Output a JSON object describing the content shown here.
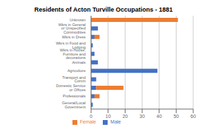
{
  "chart_data": {
    "type": "bar",
    "title": "Residents of Acton Turville Occupations - 1881",
    "orientation": "horizontal",
    "stacked": true,
    "categories": [
      "Unknown",
      "Wkrs in General or Unspecified Commodities",
      "Wkrs in Dress",
      "Wkrs in Food and Lodging",
      "Wkrs in House, Furniture and decorations",
      "Animals",
      "Agriculture",
      "Transport and Comm",
      "Domestic Service or Offices",
      "Professionals",
      "General/Local Government"
    ],
    "series": [
      {
        "name": "Male",
        "color": "#4472c4",
        "values": [
          0,
          4,
          2,
          1,
          2,
          4,
          39,
          3,
          3,
          2,
          1
        ]
      },
      {
        "name": "Female",
        "color": "#ed7d31",
        "values": [
          51,
          0,
          3,
          0,
          0,
          0,
          0,
          0,
          16,
          3,
          0
        ]
      }
    ],
    "xlim": [
      0,
      60
    ],
    "xticks": [
      0,
      10,
      20,
      30,
      40,
      50,
      60
    ],
    "grid": true,
    "legend": "bottom"
  }
}
